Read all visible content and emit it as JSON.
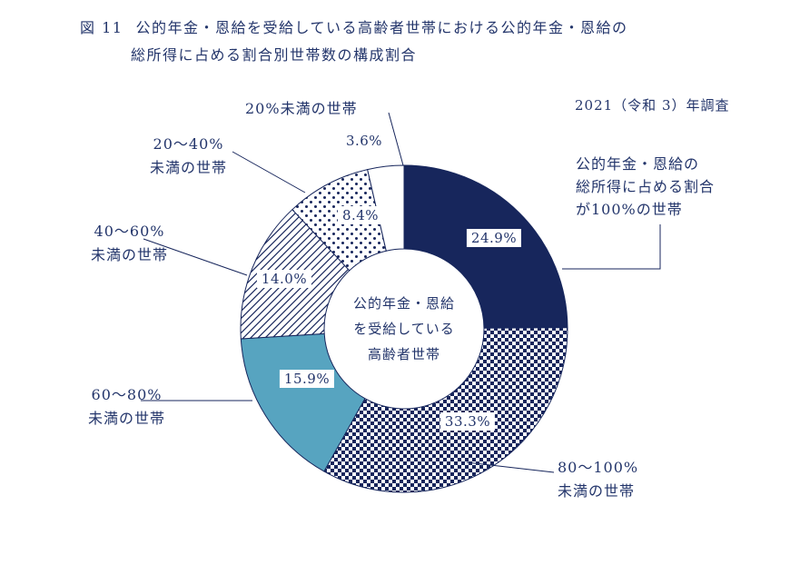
{
  "page": {
    "figure_label": "図 11",
    "title_line1": "公的年金・恩給を受給している高齢者世帯における公的年金・恩給の",
    "title_line2": "総所得に占める割合別世帯数の構成割合",
    "survey_label": "2021（令和 3）年調査"
  },
  "colors": {
    "navy": "#17265c",
    "teal": "#57a4c0",
    "text": "#23356b",
    "background": "#ffffff"
  },
  "chart_data": {
    "type": "pie",
    "subtype": "donut",
    "title": "公的年金・恩給を受給している高齢者世帯における公的年金・恩給の総所得に占める割合別世帯数の構成割合",
    "survey_year": "2021（令和 3）年調査",
    "start_angle_deg": -90,
    "direction": "clockwise",
    "legend_position": "callout-labels",
    "center_label_lines": [
      "公的年金・恩給",
      "を受給している",
      "高齢者世帯"
    ],
    "segments": [
      {
        "label": "公的年金・恩給の総所得に占める割合が100%の世帯",
        "value": 24.9,
        "display": "24.9%",
        "fill": "solid",
        "color": "#17265c"
      },
      {
        "label": "80～100%未満の世帯",
        "value": 33.3,
        "display": "33.3%",
        "fill": "checker",
        "color": "#17265c"
      },
      {
        "label": "60～80%未満の世帯",
        "value": 15.9,
        "display": "15.9%",
        "fill": "solid",
        "color": "#57a4c0"
      },
      {
        "label": "40～60%未満の世帯",
        "value": 14.0,
        "display": "14.0%",
        "fill": "diagonal",
        "color": "#17265c"
      },
      {
        "label": "20～40%未満の世帯",
        "value": 8.4,
        "display": "8.4%",
        "fill": "dots",
        "color": "#17265c"
      },
      {
        "label": "20%未満の世帯",
        "value": 3.6,
        "display": "3.6%",
        "fill": "white",
        "color": "#ffffff"
      }
    ]
  },
  "labels": {
    "p100": {
      "line1": "公的年金・恩給の",
      "line2": "総所得に占める割合",
      "line3": "が100%の世帯"
    },
    "p80_100": {
      "line1": "80～100%",
      "line2": "未満の世帯"
    },
    "p60_80": {
      "line1": "60～80%",
      "line2": "未満の世帯"
    },
    "p40_60": {
      "line1": "40～60%",
      "line2": "未満の世帯"
    },
    "p20_40": {
      "line1": "20～40%",
      "line2": "未満の世帯"
    },
    "under20": {
      "line1": "20%未満の世帯"
    }
  }
}
